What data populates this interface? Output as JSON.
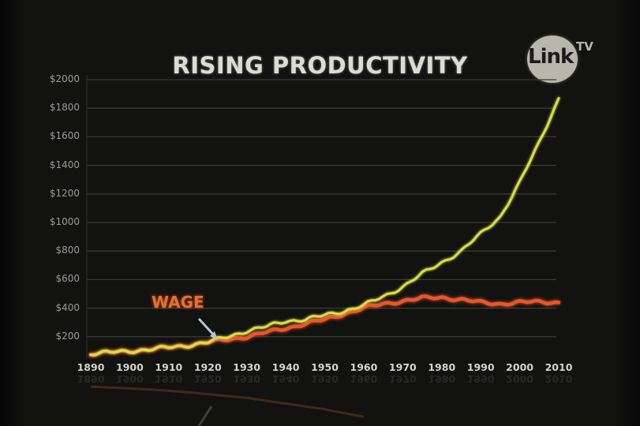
{
  "logo": {
    "text": "Link",
    "superscript": "TV"
  },
  "chart_data": {
    "type": "line",
    "title": "RISING PRODUCTIVITY",
    "xlabel": "",
    "ylabel": "",
    "ylim": [
      0,
      2000
    ],
    "xlim": [
      1890,
      2010
    ],
    "grid": true,
    "y_ticks": [
      "$200",
      "$400",
      "$600",
      "$800",
      "$1000",
      "$1200",
      "$1400",
      "$1600",
      "$1800",
      "$2000"
    ],
    "x_ticks": [
      "1890",
      "1900",
      "1910",
      "1920",
      "1930",
      "1940",
      "1950",
      "1960",
      "1970",
      "1980",
      "1990",
      "2000",
      "2010"
    ],
    "annotations": [
      {
        "text": "WAGE",
        "target_x": 1922,
        "target_y": 180,
        "arrow": true,
        "color": "#ec6d2c"
      }
    ],
    "x": [
      1890,
      1895,
      1900,
      1905,
      1910,
      1915,
      1920,
      1925,
      1930,
      1935,
      1940,
      1945,
      1950,
      1955,
      1960,
      1965,
      1970,
      1975,
      1980,
      1985,
      1990,
      1995,
      2000,
      2005,
      2010
    ],
    "series": [
      {
        "name": "Productivity",
        "color": "#d9dd4a",
        "values": [
          80,
          90,
          100,
          110,
          125,
          140,
          160,
          200,
          240,
          270,
          310,
          320,
          350,
          380,
          420,
          480,
          550,
          640,
          720,
          800,
          920,
          1040,
          1280,
          1560,
          1870
        ]
      },
      {
        "name": "Wage",
        "color": "#e8562a",
        "values": [
          80,
          90,
          100,
          110,
          125,
          140,
          160,
          180,
          200,
          230,
          260,
          290,
          320,
          360,
          400,
          430,
          450,
          470,
          475,
          460,
          440,
          430,
          440,
          445,
          440
        ]
      }
    ]
  }
}
